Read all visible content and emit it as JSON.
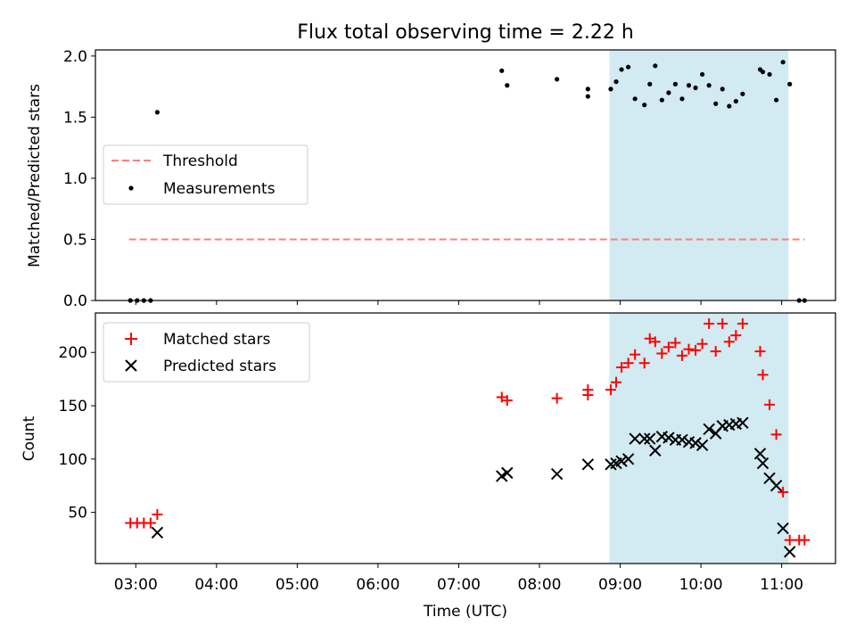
{
  "chart_data": [
    {
      "type": "scatter",
      "title": "Flux total observing time = 2.22 h",
      "xlabel": "",
      "ylabel": "Matched/Predicted stars",
      "ylim": [
        0,
        2.05
      ],
      "yticks": [
        "0.0",
        "0.5",
        "1.0",
        "1.5",
        "2.0"
      ],
      "xlim": [
        "02:30",
        "11:40"
      ],
      "shaded_span": {
        "from": "08:52",
        "to": "11:05",
        "color": "#add8e6"
      },
      "threshold": {
        "name": "Threshold",
        "value": 0.5,
        "x_from": "02:55",
        "x_to": "11:17",
        "color": "#ff7f7f"
      },
      "legend": {
        "position": "center-left",
        "entries": [
          "Threshold",
          "Measurements"
        ]
      },
      "series": [
        {
          "name": "Measurements",
          "color": "#000000",
          "points": [
            {
              "x": "02:56",
              "y": 0.0
            },
            {
              "x": "03:01",
              "y": 0.0
            },
            {
              "x": "03:06",
              "y": 0.0
            },
            {
              "x": "03:11",
              "y": 0.0
            },
            {
              "x": "03:16",
              "y": 1.54
            },
            {
              "x": "07:32",
              "y": 1.88
            },
            {
              "x": "07:36",
              "y": 1.76
            },
            {
              "x": "08:13",
              "y": 1.81
            },
            {
              "x": "08:36",
              "y": 1.67
            },
            {
              "x": "08:36",
              "y": 1.73
            },
            {
              "x": "08:53",
              "y": 1.73
            },
            {
              "x": "08:57",
              "y": 1.79
            },
            {
              "x": "09:01",
              "y": 1.89
            },
            {
              "x": "09:06",
              "y": 1.91
            },
            {
              "x": "09:11",
              "y": 1.65
            },
            {
              "x": "09:18",
              "y": 1.6
            },
            {
              "x": "09:22",
              "y": 1.77
            },
            {
              "x": "09:26",
              "y": 1.92
            },
            {
              "x": "09:31",
              "y": 1.64
            },
            {
              "x": "09:36",
              "y": 1.7
            },
            {
              "x": "09:41",
              "y": 1.77
            },
            {
              "x": "09:46",
              "y": 1.65
            },
            {
              "x": "09:51",
              "y": 1.76
            },
            {
              "x": "09:56",
              "y": 1.74
            },
            {
              "x": "10:01",
              "y": 1.85
            },
            {
              "x": "10:06",
              "y": 1.76
            },
            {
              "x": "10:11",
              "y": 1.61
            },
            {
              "x": "10:16",
              "y": 1.73
            },
            {
              "x": "10:21",
              "y": 1.59
            },
            {
              "x": "10:26",
              "y": 1.63
            },
            {
              "x": "10:31",
              "y": 1.69
            },
            {
              "x": "10:44",
              "y": 1.89
            },
            {
              "x": "10:46",
              "y": 1.87
            },
            {
              "x": "10:51",
              "y": 1.85
            },
            {
              "x": "10:56",
              "y": 1.64
            },
            {
              "x": "11:01",
              "y": 1.95
            },
            {
              "x": "11:06",
              "y": 1.77
            },
            {
              "x": "11:13",
              "y": 0.0
            },
            {
              "x": "11:17",
              "y": 0.0
            }
          ]
        }
      ]
    },
    {
      "type": "scatter",
      "title": "",
      "xlabel": "Time (UTC)",
      "ylabel": "Count",
      "ylim": [
        2,
        237
      ],
      "yticks": [
        "50",
        "100",
        "150",
        "200"
      ],
      "xlim": [
        "02:30",
        "11:40"
      ],
      "xticks": [
        "03:00",
        "04:00",
        "05:00",
        "06:00",
        "07:00",
        "08:00",
        "09:00",
        "10:00",
        "11:00"
      ],
      "shaded_span": {
        "from": "08:52",
        "to": "11:05",
        "color": "#add8e6"
      },
      "legend": {
        "position": "top-left",
        "entries": [
          "Matched stars",
          "Predicted stars"
        ]
      },
      "series": [
        {
          "name": "Matched stars",
          "marker": "plus",
          "color": "#ff0000",
          "points": [
            {
              "x": "02:56",
              "y": 40
            },
            {
              "x": "03:01",
              "y": 40
            },
            {
              "x": "03:06",
              "y": 40
            },
            {
              "x": "03:11",
              "y": 40
            },
            {
              "x": "03:16",
              "y": 48
            },
            {
              "x": "07:32",
              "y": 158
            },
            {
              "x": "07:36",
              "y": 155
            },
            {
              "x": "08:13",
              "y": 157
            },
            {
              "x": "08:36",
              "y": 160
            },
            {
              "x": "08:36",
              "y": 165
            },
            {
              "x": "08:53",
              "y": 165
            },
            {
              "x": "08:57",
              "y": 172
            },
            {
              "x": "09:01",
              "y": 186
            },
            {
              "x": "09:06",
              "y": 190
            },
            {
              "x": "09:11",
              "y": 198
            },
            {
              "x": "09:18",
              "y": 190
            },
            {
              "x": "09:22",
              "y": 213
            },
            {
              "x": "09:26",
              "y": 210
            },
            {
              "x": "09:31",
              "y": 199
            },
            {
              "x": "09:36",
              "y": 205
            },
            {
              "x": "09:41",
              "y": 209
            },
            {
              "x": "09:46",
              "y": 197
            },
            {
              "x": "09:51",
              "y": 203
            },
            {
              "x": "09:56",
              "y": 202
            },
            {
              "x": "10:01",
              "y": 208
            },
            {
              "x": "10:06",
              "y": 227
            },
            {
              "x": "10:11",
              "y": 201
            },
            {
              "x": "10:16",
              "y": 227
            },
            {
              "x": "10:21",
              "y": 210
            },
            {
              "x": "10:26",
              "y": 216
            },
            {
              "x": "10:31",
              "y": 227
            },
            {
              "x": "10:44",
              "y": 201
            },
            {
              "x": "10:46",
              "y": 179
            },
            {
              "x": "10:51",
              "y": 151
            },
            {
              "x": "10:56",
              "y": 123
            },
            {
              "x": "11:01",
              "y": 69
            },
            {
              "x": "11:06",
              "y": 24
            },
            {
              "x": "11:13",
              "y": 24
            },
            {
              "x": "11:17",
              "y": 24
            }
          ]
        },
        {
          "name": "Predicted stars",
          "marker": "x",
          "color": "#000000",
          "points": [
            {
              "x": "03:16",
              "y": 31
            },
            {
              "x": "07:32",
              "y": 84
            },
            {
              "x": "07:36",
              "y": 87
            },
            {
              "x": "08:13",
              "y": 86
            },
            {
              "x": "08:36",
              "y": 95
            },
            {
              "x": "08:53",
              "y": 95
            },
            {
              "x": "08:57",
              "y": 96
            },
            {
              "x": "09:01",
              "y": 98
            },
            {
              "x": "09:06",
              "y": 100
            },
            {
              "x": "09:11",
              "y": 119
            },
            {
              "x": "09:18",
              "y": 119
            },
            {
              "x": "09:22",
              "y": 119
            },
            {
              "x": "09:26",
              "y": 108
            },
            {
              "x": "09:31",
              "y": 121
            },
            {
              "x": "09:36",
              "y": 120
            },
            {
              "x": "09:41",
              "y": 118
            },
            {
              "x": "09:46",
              "y": 118
            },
            {
              "x": "09:51",
              "y": 116
            },
            {
              "x": "09:56",
              "y": 115
            },
            {
              "x": "10:01",
              "y": 113
            },
            {
              "x": "10:06",
              "y": 128
            },
            {
              "x": "10:11",
              "y": 124
            },
            {
              "x": "10:16",
              "y": 131
            },
            {
              "x": "10:21",
              "y": 132
            },
            {
              "x": "10:26",
              "y": 133
            },
            {
              "x": "10:31",
              "y": 134
            },
            {
              "x": "10:44",
              "y": 105
            },
            {
              "x": "10:46",
              "y": 96
            },
            {
              "x": "10:51",
              "y": 82
            },
            {
              "x": "10:56",
              "y": 75
            },
            {
              "x": "11:01",
              "y": 35
            },
            {
              "x": "11:06",
              "y": 13
            }
          ]
        }
      ]
    }
  ]
}
